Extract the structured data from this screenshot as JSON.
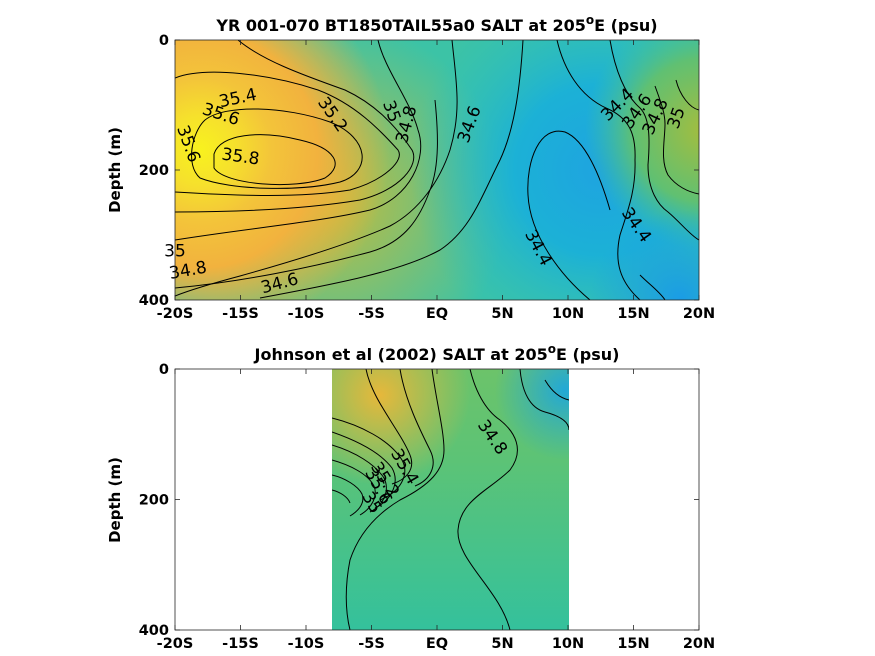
{
  "chart_data": [
    {
      "type": "heatmap",
      "title_main": "YR 001-070 BT1850TAIL55a0 SALT at 205",
      "title_sup": "o",
      "title_tail": "E (psu)",
      "ylabel": "Depth (m)",
      "xlabel": "",
      "x_ticks": [
        "-20S",
        "-15S",
        "-10S",
        "-5S",
        "EQ",
        "5N",
        "10N",
        "15N",
        "20N"
      ],
      "x_tick_values": [
        -20,
        -15,
        -10,
        -5,
        0,
        5,
        10,
        15,
        20
      ],
      "y_ticks": [
        "0",
        "200",
        "400"
      ],
      "y_tick_values": [
        0,
        200,
        400
      ],
      "xlim": [
        -20,
        20
      ],
      "ylim": [
        0,
        400
      ],
      "y_reversed": true,
      "colormap": "parula",
      "data_extent": [
        -20,
        20
      ],
      "contour_labels": [
        {
          "text": "35.4",
          "x": -15.2,
          "y": 90
        },
        {
          "text": "35.6",
          "x": -16.5,
          "y": 115
        },
        {
          "text": "35.6",
          "x": -19,
          "y": 160
        },
        {
          "text": "35.8",
          "x": -15,
          "y": 180
        },
        {
          "text": "35.2",
          "x": -8,
          "y": 115
        },
        {
          "text": "35",
          "x": -3.5,
          "y": 110
        },
        {
          "text": "34.8",
          "x": -2.3,
          "y": 130
        },
        {
          "text": "34.6",
          "x": 2.5,
          "y": 130
        },
        {
          "text": "34.4",
          "x": 13.8,
          "y": 100
        },
        {
          "text": "34.6",
          "x": 15.3,
          "y": 110
        },
        {
          "text": "34.8",
          "x": 16.7,
          "y": 118
        },
        {
          "text": "35",
          "x": 18.3,
          "y": 120
        },
        {
          "text": "34.4",
          "x": 15.2,
          "y": 285
        },
        {
          "text": "34.4",
          "x": 7.7,
          "y": 320
        },
        {
          "text": "35",
          "x": -20,
          "y": 325
        },
        {
          "text": "34.8",
          "x": -19,
          "y": 355
        },
        {
          "text": "34.6",
          "x": -12,
          "y": 375
        }
      ]
    },
    {
      "type": "heatmap",
      "title_main": "Johnson et al (2002) SALT at 205",
      "title_sup": "o",
      "title_tail": "E (psu)",
      "ylabel": "Depth (m)",
      "xlabel": "",
      "x_ticks": [
        "-20S",
        "-15S",
        "-10S",
        "-5S",
        "EQ",
        "5N",
        "10N",
        "15N",
        "20N"
      ],
      "x_tick_values": [
        -20,
        -15,
        -10,
        -5,
        0,
        5,
        10,
        15,
        20
      ],
      "y_ticks": [
        "0",
        "200",
        "400"
      ],
      "y_tick_values": [
        0,
        200,
        400
      ],
      "xlim": [
        -20,
        20
      ],
      "ylim": [
        0,
        400
      ],
      "y_reversed": true,
      "colormap": "parula",
      "data_extent": [
        -8,
        10
      ],
      "contour_labels": [
        {
          "text": "34.8",
          "x": 4.2,
          "y": 105
        },
        {
          "text": "35.4",
          "x": -2.5,
          "y": 150
        },
        {
          "text": "35.2",
          "x": -4,
          "y": 170
        },
        {
          "text": "35.6",
          "x": -4.5,
          "y": 180
        },
        {
          "text": "35",
          "x": -5,
          "y": 205
        }
      ]
    }
  ]
}
